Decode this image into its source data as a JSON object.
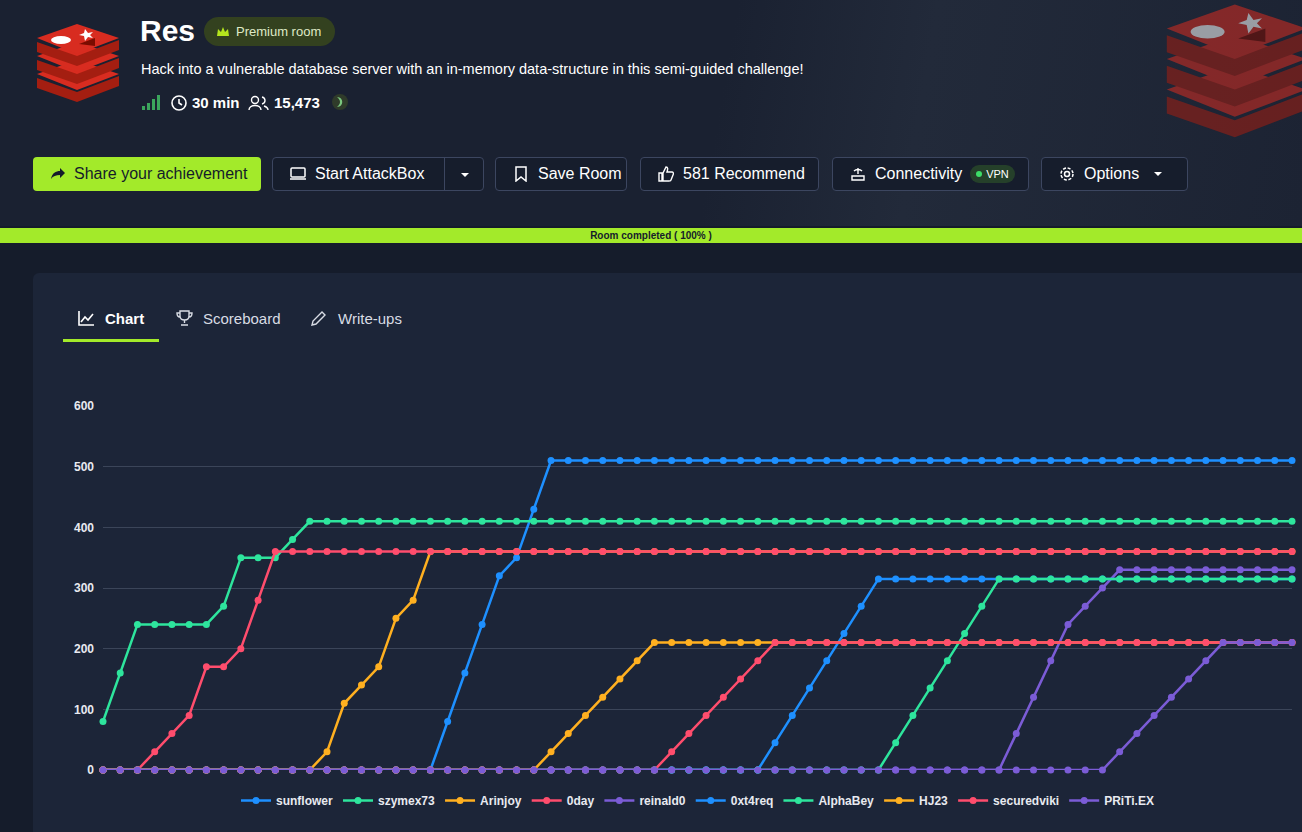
{
  "header": {
    "title": "Res",
    "badge": "Premium room",
    "subtitle": "Hack into a vulnerable database server with an in-memory data-structure in this semi-guided challenge!",
    "duration": "30 min",
    "users": "15,473"
  },
  "buttons": [
    "Share your achievement",
    "Start AttackBox",
    "Save Room",
    "581 Recommend",
    "Connectivity",
    "Options"
  ],
  "connectivity_badge": "VPN",
  "progress": "Room completed ( 100% )",
  "tabs": [
    "Chart",
    "Scoreboard",
    "Write-ups"
  ],
  "chart_data": {
    "type": "line",
    "categories": [
      null,
      null,
      null,
      null,
      null,
      null,
      null,
      null,
      null,
      null,
      null,
      null,
      null,
      null,
      null,
      null,
      null,
      null,
      null,
      null,
      null,
      null,
      null,
      null,
      null,
      null,
      null,
      null,
      null,
      null,
      null,
      null,
      null,
      null,
      null,
      null,
      null,
      null,
      null,
      null,
      null,
      null,
      null,
      null,
      null,
      null,
      null,
      null,
      null,
      null,
      null,
      null,
      null,
      null,
      null,
      null,
      null,
      null,
      null,
      null,
      null,
      null,
      null,
      null,
      null,
      null,
      null,
      null,
      null,
      null
    ],
    "series": [
      {
        "name": "sunflower",
        "color": "#1e90ff",
        "values": [
          0,
          0,
          0,
          0,
          0,
          0,
          0,
          0,
          0,
          0,
          0,
          0,
          0,
          0,
          0,
          0,
          0,
          0,
          0,
          0,
          80,
          160,
          240,
          320,
          350,
          430,
          510,
          510,
          510,
          510,
          510,
          510,
          510,
          510,
          510,
          510,
          510,
          510,
          510,
          510,
          510,
          510,
          510,
          510,
          510,
          510,
          510,
          510,
          510,
          510,
          510,
          510,
          510,
          510,
          510,
          510,
          510,
          510,
          510,
          510,
          510,
          510,
          510,
          510,
          510,
          510,
          510,
          510,
          510,
          510
        ]
      },
      {
        "name": "szymex73",
        "color": "#2ee59d",
        "values": [
          80,
          160,
          240,
          240,
          240,
          240,
          240,
          270,
          350,
          350,
          350,
          380,
          410,
          410,
          410,
          410,
          410,
          410,
          410,
          410,
          410,
          410,
          410,
          410,
          410,
          410,
          410,
          410,
          410,
          410,
          410,
          410,
          410,
          410,
          410,
          410,
          410,
          410,
          410,
          410,
          410,
          410,
          410,
          410,
          410,
          410,
          410,
          410,
          410,
          410,
          410,
          410,
          410,
          410,
          410,
          410,
          410,
          410,
          410,
          410,
          410,
          410,
          410,
          410,
          410,
          410,
          410,
          410,
          410,
          410
        ]
      },
      {
        "name": "Arinjoy",
        "color": "#ffb020",
        "values": [
          0,
          0,
          0,
          0,
          0,
          0,
          0,
          0,
          0,
          0,
          0,
          0,
          0,
          30,
          110,
          140,
          170,
          250,
          280,
          360,
          360,
          360,
          360,
          360,
          360,
          360,
          360,
          360,
          360,
          360,
          360,
          360,
          360,
          360,
          360,
          360,
          360,
          360,
          360,
          360,
          360,
          360,
          360,
          360,
          360,
          360,
          360,
          360,
          360,
          360,
          360,
          360,
          360,
          360,
          360,
          360,
          360,
          360,
          360,
          360,
          360,
          360,
          360,
          360,
          360,
          360,
          360,
          360,
          360,
          360
        ]
      },
      {
        "name": "0day",
        "color": "#ff4d6d",
        "values": [
          0,
          0,
          0,
          30,
          60,
          90,
          170,
          170,
          200,
          280,
          360,
          360,
          360,
          360,
          360,
          360,
          360,
          360,
          360,
          360,
          360,
          360,
          360,
          360,
          360,
          360,
          360,
          360,
          360,
          360,
          360,
          360,
          360,
          360,
          360,
          360,
          360,
          360,
          360,
          360,
          360,
          360,
          360,
          360,
          360,
          360,
          360,
          360,
          360,
          360,
          360,
          360,
          360,
          360,
          360,
          360,
          360,
          360,
          360,
          360,
          360,
          360,
          360,
          360,
          360,
          360,
          360,
          360,
          360,
          360
        ]
      },
      {
        "name": "reinald0",
        "color": "#7b5cd6",
        "values": [
          0,
          0,
          0,
          0,
          0,
          0,
          0,
          0,
          0,
          0,
          0,
          0,
          0,
          0,
          0,
          0,
          0,
          0,
          0,
          0,
          0,
          0,
          0,
          0,
          0,
          0,
          0,
          0,
          0,
          0,
          0,
          0,
          0,
          0,
          0,
          0,
          0,
          0,
          0,
          0,
          0,
          0,
          0,
          0,
          0,
          0,
          0,
          0,
          0,
          0,
          0,
          0,
          0,
          60,
          120,
          180,
          240,
          270,
          300,
          330,
          330,
          330,
          330,
          330,
          330,
          330,
          330,
          330,
          330,
          330
        ]
      },
      {
        "name": "0xt4req",
        "color": "#1e90ff",
        "values": [
          0,
          0,
          0,
          0,
          0,
          0,
          0,
          0,
          0,
          0,
          0,
          0,
          0,
          0,
          0,
          0,
          0,
          0,
          0,
          0,
          0,
          0,
          0,
          0,
          0,
          0,
          0,
          0,
          0,
          0,
          0,
          0,
          0,
          0,
          0,
          0,
          0,
          0,
          0,
          45,
          90,
          135,
          180,
          225,
          270,
          315,
          315,
          315,
          315,
          315,
          315,
          315,
          315,
          315,
          315,
          315,
          315,
          315,
          315,
          315,
          315,
          315,
          315,
          315,
          315,
          315,
          315,
          315,
          315,
          315
        ]
      },
      {
        "name": "AlphaBey",
        "color": "#2ee59d",
        "values": [
          0,
          0,
          0,
          0,
          0,
          0,
          0,
          0,
          0,
          0,
          0,
          0,
          0,
          0,
          0,
          0,
          0,
          0,
          0,
          0,
          0,
          0,
          0,
          0,
          0,
          0,
          0,
          0,
          0,
          0,
          0,
          0,
          0,
          0,
          0,
          0,
          0,
          0,
          0,
          0,
          0,
          0,
          0,
          0,
          0,
          0,
          45,
          90,
          135,
          180,
          225,
          270,
          315,
          315,
          315,
          315,
          315,
          315,
          315,
          315,
          315,
          315,
          315,
          315,
          315,
          315,
          315,
          315,
          315,
          315
        ]
      },
      {
        "name": "HJ23",
        "color": "#ffb020",
        "values": [
          0,
          0,
          0,
          0,
          0,
          0,
          0,
          0,
          0,
          0,
          0,
          0,
          0,
          0,
          0,
          0,
          0,
          0,
          0,
          0,
          0,
          0,
          0,
          0,
          0,
          0,
          30,
          60,
          90,
          120,
          150,
          180,
          210,
          210,
          210,
          210,
          210,
          210,
          210,
          210,
          210,
          210,
          210,
          210,
          210,
          210,
          210,
          210,
          210,
          210,
          210,
          210,
          210,
          210,
          210,
          210,
          210,
          210,
          210,
          210,
          210,
          210,
          210,
          210,
          210,
          210,
          210,
          210,
          210,
          210
        ]
      },
      {
        "name": "securedviki",
        "color": "#ff4d6d",
        "values": [
          0,
          0,
          0,
          0,
          0,
          0,
          0,
          0,
          0,
          0,
          0,
          0,
          0,
          0,
          0,
          0,
          0,
          0,
          0,
          0,
          0,
          0,
          0,
          0,
          0,
          0,
          0,
          0,
          0,
          0,
          0,
          0,
          0,
          30,
          60,
          90,
          120,
          150,
          180,
          210,
          210,
          210,
          210,
          210,
          210,
          210,
          210,
          210,
          210,
          210,
          210,
          210,
          210,
          210,
          210,
          210,
          210,
          210,
          210,
          210,
          210,
          210,
          210,
          210,
          210,
          210,
          210,
          210,
          210,
          210
        ]
      },
      {
        "name": "PRiTi.EX",
        "color": "#7b5cd6",
        "values": [
          0,
          0,
          0,
          0,
          0,
          0,
          0,
          0,
          0,
          0,
          0,
          0,
          0,
          0,
          0,
          0,
          0,
          0,
          0,
          0,
          0,
          0,
          0,
          0,
          0,
          0,
          0,
          0,
          0,
          0,
          0,
          0,
          0,
          0,
          0,
          0,
          0,
          0,
          0,
          0,
          0,
          0,
          0,
          0,
          0,
          0,
          0,
          0,
          0,
          0,
          0,
          0,
          0,
          0,
          0,
          0,
          0,
          0,
          0,
          30,
          60,
          90,
          120,
          150,
          180,
          210,
          210,
          210,
          210,
          210
        ]
      }
    ],
    "ylim": [
      0,
      600
    ],
    "yticks": [
      0,
      100,
      200,
      300,
      400,
      500,
      600
    ],
    "grid": true,
    "legend": "bottom",
    "tick_labels": "y",
    "marker": "circle"
  }
}
